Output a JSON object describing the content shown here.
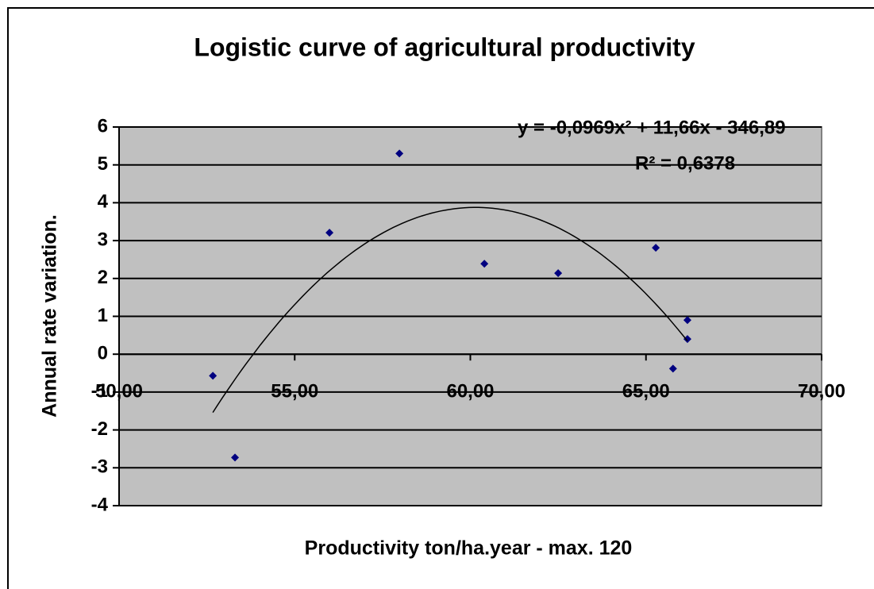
{
  "chart_data": {
    "type": "scatter",
    "title": "Logistic curve of agricultural productivity",
    "x_label": "Productivity ton/ha.year - max. 120",
    "y_label": "Annual rate variation.",
    "series": [
      {
        "name": "Annual rate variation.",
        "color": "#000080",
        "x": [
          52.67,
          53.3,
          55.99,
          57.98,
          60.4,
          62.5,
          65.28,
          65.77,
          66.18,
          66.18
        ],
        "values": [
          -0.57,
          -2.73,
          3.21,
          5.3,
          2.39,
          2.14,
          2.81,
          -0.38,
          0.9,
          0.4
        ]
      }
    ],
    "trendline": {
      "order": 2,
      "color": "#000000",
      "equation": "y = -0,0969x² + 11,66x - 346,89",
      "r_squared": "R² = 0,6378"
    },
    "xlim": [
      50,
      70
    ],
    "xticks": [
      {
        "value": 50,
        "label": "50,00"
      },
      {
        "value": 55,
        "label": "55,00"
      },
      {
        "value": 60,
        "label": "60,00"
      },
      {
        "value": 65,
        "label": "65,00"
      },
      {
        "value": 70,
        "label": "70,00"
      }
    ],
    "ylim": [
      -4,
      6
    ],
    "yticks": [
      -4,
      -3,
      -2,
      -1,
      0,
      1,
      2,
      3,
      4,
      5,
      6
    ],
    "grid": true,
    "plot_color": "#c0c0c0"
  }
}
